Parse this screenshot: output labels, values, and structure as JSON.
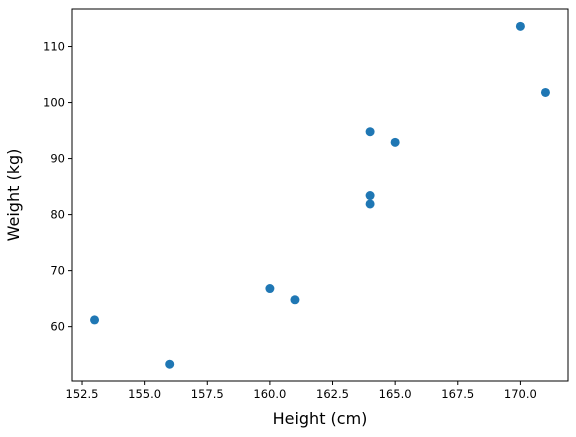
{
  "chart_data": {
    "type": "scatter",
    "title": "",
    "xlabel": "Height (cm)",
    "ylabel": "Weight (kg)",
    "xlim": [
      152.1,
      171.9
    ],
    "ylim": [
      50.3,
      116.7
    ],
    "grid": false,
    "legend": "none",
    "x_ticks": [
      152.5,
      155.0,
      157.5,
      160.0,
      162.5,
      165.0,
      167.5,
      170.0
    ],
    "x_tick_labels": [
      "152.5",
      "155.0",
      "157.5",
      "160.0",
      "162.5",
      "165.0",
      "167.5",
      "170.0"
    ],
    "y_ticks": [
      60,
      70,
      80,
      90,
      100,
      110
    ],
    "y_tick_labels": [
      "60",
      "70",
      "80",
      "90",
      "100",
      "110"
    ],
    "series": [
      {
        "color": "#1f77b4",
        "points": [
          {
            "x": 153,
            "y": 61.2
          },
          {
            "x": 156,
            "y": 53.3
          },
          {
            "x": 160,
            "y": 66.8
          },
          {
            "x": 161,
            "y": 64.8
          },
          {
            "x": 164,
            "y": 94.8
          },
          {
            "x": 164,
            "y": 83.4
          },
          {
            "x": 164,
            "y": 81.9
          },
          {
            "x": 165,
            "y": 92.9
          },
          {
            "x": 170,
            "y": 113.6
          },
          {
            "x": 171,
            "y": 101.8
          }
        ]
      }
    ]
  }
}
